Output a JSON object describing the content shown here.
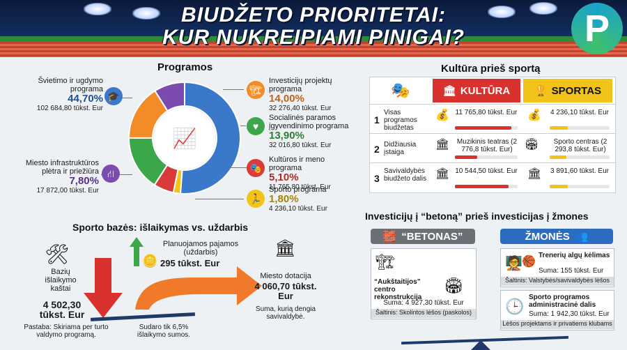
{
  "header": {
    "title_line1": "BIUDŽETO PRIORITETAI:",
    "title_line2": "KUR NUKREIPIAMI PINIGAI?",
    "logo_letter": "P"
  },
  "programs": {
    "title": "Programos",
    "items": [
      {
        "label": "Švietimo ir ugdymo programa",
        "pct": "44,70%",
        "value": "102 684,80 tūkst. Eur",
        "share": 44.7,
        "color": "#3a78c9",
        "icon": "graduation-cap-icon"
      },
      {
        "label": "Investicijų projektų programa",
        "pct": "14,00%",
        "value": "32 276,40 tūkst. Eur",
        "share": 14.0,
        "color": "#f28c28",
        "icon": "crane-icon"
      },
      {
        "label": "Socialinės paramos įgyvendinimo programa",
        "pct": "13,90%",
        "value": "32 016,80 tūkst. Eur",
        "share": 13.9,
        "color": "#3ca64a",
        "icon": "heart-hands-icon"
      },
      {
        "label": "Kultūros ir meno programa",
        "pct": "5,10%",
        "value": "11 765,80 tūkst. Eur",
        "share": 5.1,
        "color": "#d93a3a",
        "icon": "theater-masks-icon"
      },
      {
        "label": "Sporto programa",
        "pct": "1,80%",
        "value": "4 236,10 tūkst. Eur",
        "share": 1.8,
        "color": "#f2c318",
        "icon": "runner-icon"
      },
      {
        "label": "Miesto infrastruktūros plėtra ir priežiūra",
        "pct": "7,80%",
        "value": "17 872,00 tūkst. Eur",
        "share": 7.8,
        "color": "#7c4bb0",
        "icon": "road-icon"
      }
    ]
  },
  "comparison": {
    "title": "Kultūra prieš sportą",
    "culture_label": "KULTŪRA",
    "sport_label": "SPORTAS",
    "rows": [
      {
        "num": "1",
        "label": "Visas programos biudžetas",
        "culture": "11 765,80 tūkst. Eur",
        "culture_fill": 0.9,
        "sport": "4 236,10 tūkst. Eur",
        "sport_fill": 0.3
      },
      {
        "num": "2",
        "label": "Didžiausia įstaiga",
        "culture": "Muzikinis teatras (2 776,8 tūkst. Eur)",
        "culture_fill": 0.35,
        "sport": "Sporto centras (2 293,8 tūkst. Eur)",
        "sport_fill": 0.28
      },
      {
        "num": "3",
        "label": "Savivaldybės biudžeto dalis",
        "culture": "10 544,50 tūkst. Eur",
        "culture_fill": 0.85,
        "sport": "3 891,60 tūkst. Eur",
        "sport_fill": 0.3
      }
    ]
  },
  "sport_base": {
    "title": "Sporto bazės: išlaikymas vs. uždarbis",
    "cost_label": "Bazių išlaikymo kaštai",
    "cost_value": "4 502,30 tūkst. Eur",
    "income_label": "Planuojamos pajamos (uždarbis)",
    "income_value": "295 tūkst. Eur",
    "subsidy_label": "Miesto dotacija",
    "subsidy_value": "4 060,70 tūkst. Eur",
    "subsidy_note": "Suma, kurią dengia savivaldybė.",
    "note_left": "Pastaba: Skiriama per turto valdymo programą.",
    "note_mid": "Sudaro tik 6,5% išlaikymo sumos."
  },
  "investments": {
    "title": "Investicijų į “betoną” prieš investicijas į žmones",
    "concrete_header": "“BETONAS”",
    "people_header": "ŽMONĖS",
    "concrete_item_title": "“Aukštaitijos” centro rekonstrukcija",
    "concrete_item_sum": "Suma: 4 927,30 tūkst. Eur",
    "concrete_source": "Šaltinis: Skolintos lėšos (paskolos)",
    "people_item1_title": "Trenerių algų kėlimas",
    "people_item1_sum": "Suma: 155 tūkst. Eur",
    "people_item1_source": "Šaltinis: Valstybės/savivaldybės lėšos",
    "people_item2_title": "Sporto programos administracinė dalis",
    "people_item2_sum": "Suma: 1 942,30 tūkst. Eur",
    "people_item2_source": "Lėšos projektams ir privatiems klubams"
  },
  "colors": {
    "culture": "#d9322e",
    "sport": "#f2c318",
    "concrete": "#6b6f76",
    "people": "#2c6cc0",
    "arrow_down": "#d9322e",
    "arrow_orange": "#f07a2a",
    "arrow_green": "#3ca64a"
  }
}
